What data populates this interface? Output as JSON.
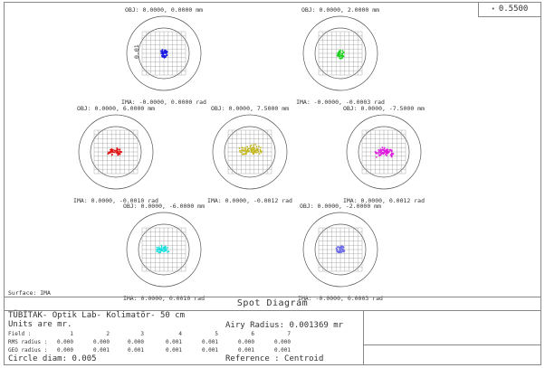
{
  "wavelength": {
    "marker": "•",
    "value": "0.5500"
  },
  "scale_label": "0.01",
  "surface_label": "Surface: IMA",
  "spots": [
    {
      "obj": "OBJ: 0.0000, 0.0000 mm",
      "ima": "IMA: -0.0000, 0.0000 rad",
      "color": "#1a1ae6"
    },
    {
      "obj": "OBJ: 0.0000, 2.0000 mm",
      "ima": "IMA: -0.0000, -0.0003 rad",
      "color": "#19d119"
    },
    {
      "obj": "OBJ: 0.0000, 6.0000 mm",
      "ima": "IMA: 0.0000, -0.0010 rad",
      "color": "#e01818"
    },
    {
      "obj": "OBJ: 0.0000, 7.5000 mm",
      "ima": "IMA: 0.0000, -0.0012 rad",
      "color": "#c4b818"
    },
    {
      "obj": "OBJ: 0.0000, -7.5000 mm",
      "ima": "IMA: 0.0000, 0.0012 rad",
      "color": "#e018e0"
    },
    {
      "obj": "OBJ: 0.0000, -6.0000 mm",
      "ima": "IMA: 0.0000, 0.0010 rad",
      "color": "#18e0e0"
    },
    {
      "obj": "OBJ: 0.0000, -2.0000 mm",
      "ima": "IMA: -0.0000, 0.0003 rad",
      "color": "#6a6ae8"
    }
  ],
  "footer": {
    "title": "Spot Diagram",
    "line1": "TÜBİTAK- Optik Lab- Kolimatör- 50 cm",
    "line2": "Units are mr.",
    "airy": "Airy Radius: 0.001369 mr",
    "field_label": "Field      :",
    "fields": [
      "1",
      "2",
      "3",
      "4",
      "5",
      "6",
      "7"
    ],
    "rms_label": "RMS radius :",
    "rms": [
      "0.000",
      "0.000",
      "0.000",
      "0.001",
      "0.001",
      "0.000",
      "0.000"
    ],
    "geo_label": "GEO radius :",
    "geo": [
      "0.000",
      "0.001",
      "0.001",
      "0.001",
      "0.001",
      "0.001",
      "0.001"
    ],
    "circle": "Circle diam: 0.005",
    "reference": "Reference  : Centroid"
  }
}
